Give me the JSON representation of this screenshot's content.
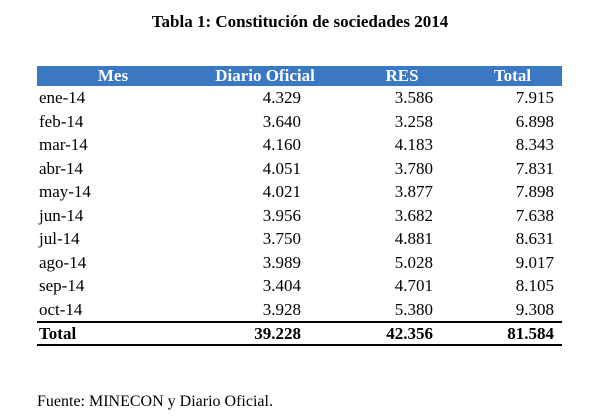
{
  "title": "Tabla 1: Constitución de sociedades 2014",
  "table": {
    "headers": [
      "Mes",
      "Diario Oficial",
      "RES",
      "Total"
    ],
    "rows": [
      [
        "ene-14",
        "4.329",
        "3.586",
        "7.915"
      ],
      [
        "feb-14",
        "3.640",
        "3.258",
        "6.898"
      ],
      [
        "mar-14",
        "4.160",
        "4.183",
        "8.343"
      ],
      [
        "abr-14",
        "4.051",
        "3.780",
        "7.831"
      ],
      [
        "may-14",
        "4.021",
        "3.877",
        "7.898"
      ],
      [
        "jun-14",
        "3.956",
        "3.682",
        "7.638"
      ],
      [
        "jul-14",
        "3.750",
        "4.881",
        "8.631"
      ],
      [
        "ago-14",
        "3.989",
        "5.028",
        "9.017"
      ],
      [
        "sep-14",
        "3.404",
        "4.701",
        "8.105"
      ],
      [
        "oct-14",
        "3.928",
        "5.380",
        "9.308"
      ]
    ],
    "total": [
      "Total",
      "39.228",
      "42.356",
      "81.584"
    ],
    "header_color": "#3a78c3"
  },
  "source": "Fuente: MINECON y Diario Oficial."
}
